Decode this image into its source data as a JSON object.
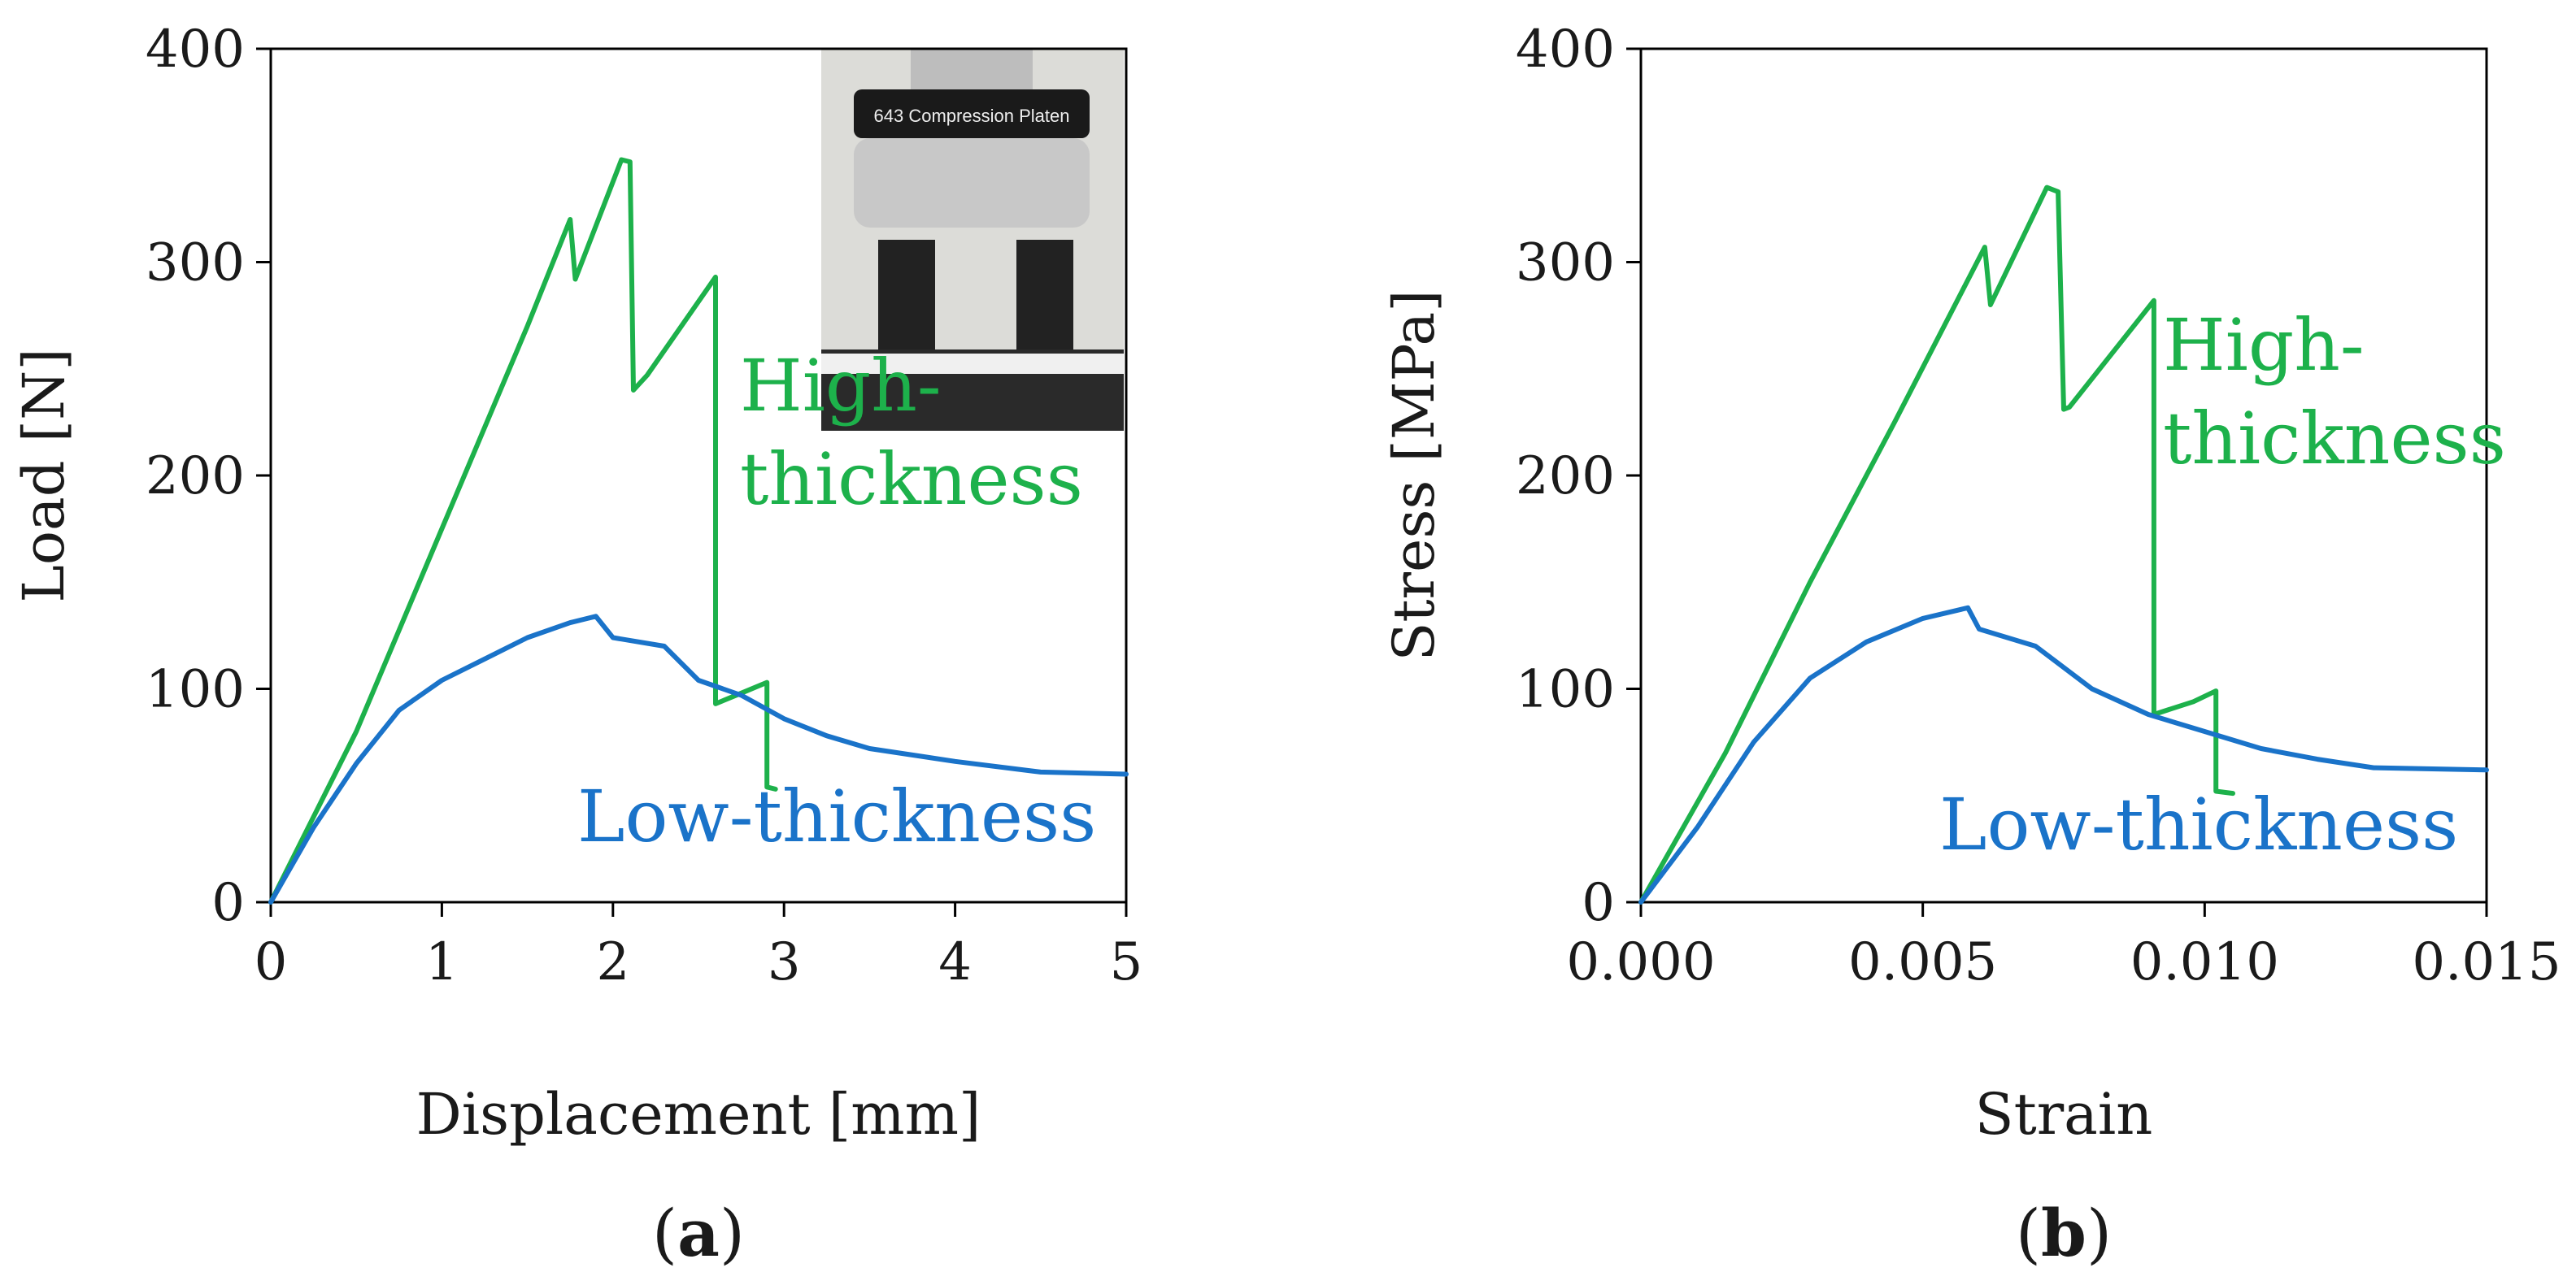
{
  "chart_data": [
    {
      "type": "line",
      "panel_label": "a",
      "xlabel": "Displacement [mm]",
      "ylabel": "Load [N]",
      "xlim": [
        0,
        5
      ],
      "ylim": [
        0,
        400
      ],
      "xticks": [
        "0",
        "1",
        "2",
        "3",
        "4",
        "5"
      ],
      "yticks": [
        "0",
        "100",
        "200",
        "300",
        "400"
      ],
      "inset": {
        "text": "643 Compression Platen",
        "kind": "photo"
      },
      "series": [
        {
          "name": "High-thickness",
          "label_lines": [
            "High-",
            "thickness"
          ],
          "color": "#1db14b",
          "x": [
            0,
            0.5,
            1.0,
            1.5,
            1.75,
            1.78,
            2.05,
            2.1,
            2.12,
            2.2,
            2.6,
            2.6,
            2.75,
            2.9,
            2.9,
            2.95
          ],
          "y": [
            0,
            80,
            175,
            270,
            320,
            292,
            348,
            347,
            240,
            247,
            293,
            93,
            98,
            103,
            54,
            53
          ]
        },
        {
          "name": "Low-thickness",
          "label_lines": [
            "Low-thickness"
          ],
          "color": "#1a73c9",
          "x": [
            0,
            0.25,
            0.5,
            0.75,
            1.0,
            1.25,
            1.5,
            1.75,
            1.9,
            2.0,
            2.3,
            2.5,
            2.75,
            3.0,
            3.25,
            3.5,
            4.0,
            4.5,
            5.0
          ],
          "y": [
            0,
            35,
            65,
            90,
            104,
            114,
            124,
            131,
            134,
            124,
            120,
            104,
            97,
            86,
            78,
            72,
            66,
            61,
            60
          ]
        }
      ]
    },
    {
      "type": "line",
      "panel_label": "b",
      "xlabel": "Strain",
      "ylabel": "Stress [MPa]",
      "xlim": [
        0,
        0.015
      ],
      "ylim": [
        0,
        400
      ],
      "xticks": [
        "0.000",
        "0.005",
        "0.010",
        "0.015"
      ],
      "yticks": [
        "0",
        "100",
        "200",
        "300",
        "400"
      ],
      "series": [
        {
          "name": "High-thickness",
          "label_lines": [
            "High-",
            "thickness"
          ],
          "color": "#1db14b",
          "x": [
            0,
            0.0015,
            0.003,
            0.0045,
            0.0061,
            0.0062,
            0.0072,
            0.0074,
            0.0075,
            0.0076,
            0.0091,
            0.0091,
            0.0098,
            0.0102,
            0.0102,
            0.0105
          ],
          "y": [
            0,
            70,
            150,
            225,
            307,
            280,
            335,
            333,
            231,
            232,
            282,
            88,
            94,
            99,
            52,
            51
          ]
        },
        {
          "name": "Low-thickness",
          "label_lines": [
            "Low-thickness"
          ],
          "color": "#1a73c9",
          "x": [
            0,
            0.001,
            0.002,
            0.003,
            0.004,
            0.005,
            0.0058,
            0.006,
            0.007,
            0.008,
            0.009,
            0.01,
            0.011,
            0.012,
            0.013,
            0.015
          ],
          "y": [
            0,
            35,
            75,
            105,
            122,
            133,
            138,
            128,
            120,
            100,
            88,
            80,
            72,
            67,
            63,
            62
          ]
        }
      ]
    }
  ]
}
